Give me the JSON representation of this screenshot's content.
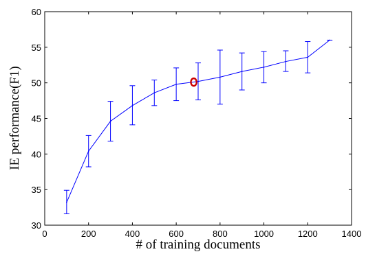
{
  "chart_data": {
    "type": "line",
    "title": "",
    "xlabel": "# of training documents",
    "ylabel": "IE performance(F1)",
    "xlim": [
      0,
      1400
    ],
    "ylim": [
      30,
      60
    ],
    "xticks": [
      0,
      200,
      400,
      600,
      800,
      1000,
      1200,
      1400
    ],
    "yticks": [
      30,
      35,
      40,
      45,
      50,
      55,
      60
    ],
    "grid": false,
    "legend": "none",
    "series": [
      {
        "x": [
          100,
          200,
          300,
          400,
          500,
          600,
          700,
          800,
          900,
          1000,
          1100,
          1200,
          1300
        ],
        "y": [
          33.2,
          40.4,
          44.6,
          46.8,
          48.6,
          49.8,
          50.2,
          50.8,
          51.6,
          52.2,
          53.0,
          53.6,
          56.0
        ],
        "error_low": [
          31.6,
          38.2,
          41.8,
          44.1,
          46.8,
          47.5,
          47.6,
          47.0,
          49.0,
          50.0,
          51.6,
          51.4,
          56.0
        ],
        "error_high": [
          34.9,
          42.6,
          47.4,
          49.6,
          50.4,
          52.1,
          52.8,
          54.6,
          54.2,
          54.4,
          54.5,
          55.8,
          56.0
        ],
        "color": "#0000ff"
      }
    ],
    "annotations": [
      {
        "type": "marker",
        "shape": "circle",
        "x": 680,
        "y": 50.1,
        "color": "#cc0000"
      }
    ]
  }
}
